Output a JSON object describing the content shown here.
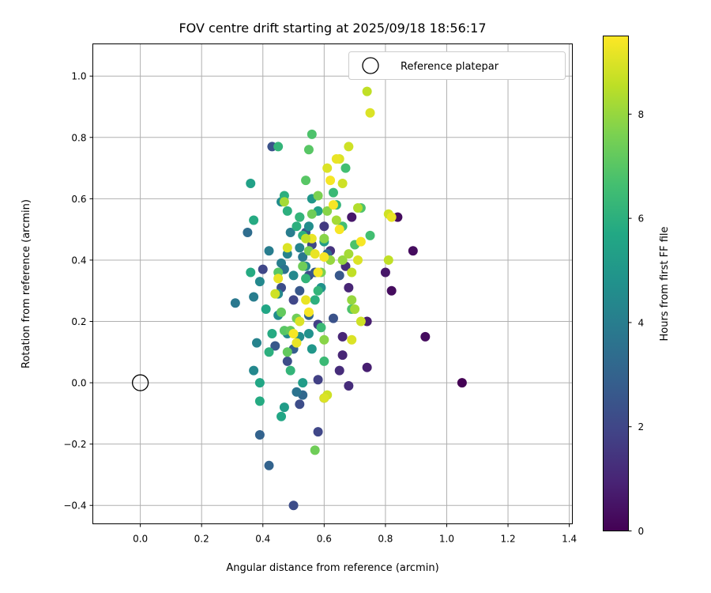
{
  "chart_data": {
    "type": "scatter",
    "title": "FOV centre drift starting at 2025/09/18 18:56:17",
    "xlabel": "Angular distance from reference (arcmin)",
    "ylabel": "Rotation from reference (arcmin)",
    "xlim": [
      -0.155,
      1.41
    ],
    "ylim": [
      -0.46,
      1.105
    ],
    "xticks": [
      0.0,
      0.2,
      0.4,
      0.6,
      0.8,
      1.0,
      1.2,
      1.4
    ],
    "yticks": [
      -0.4,
      -0.2,
      0.0,
      0.2,
      0.4,
      0.6,
      0.8,
      1.0
    ],
    "grid": true,
    "legend": {
      "label": "Reference platepar",
      "placement": "top-right"
    },
    "reference_point": {
      "x": 0.0,
      "y": 0.0
    },
    "colorbar": {
      "label": "Hours from first FF file",
      "range": [
        0,
        9.5
      ],
      "ticks": [
        0,
        2,
        4,
        6,
        8
      ],
      "colormap": "viridis"
    },
    "points": [
      [
        1.05,
        0.0,
        0.0
      ],
      [
        0.93,
        0.15,
        0.3
      ],
      [
        0.89,
        0.43,
        0.3
      ],
      [
        0.84,
        0.54,
        0.3
      ],
      [
        0.82,
        0.3,
        0.3
      ],
      [
        0.8,
        0.36,
        0.6
      ],
      [
        0.74,
        0.2,
        0.8
      ],
      [
        0.74,
        0.05,
        0.8
      ],
      [
        0.69,
        0.54,
        0.6
      ],
      [
        0.68,
        0.31,
        1.0
      ],
      [
        0.67,
        0.38,
        1.2
      ],
      [
        0.66,
        0.15,
        1.0
      ],
      [
        0.66,
        0.09,
        1.0
      ],
      [
        0.65,
        0.04,
        1.2
      ],
      [
        0.68,
        -0.01,
        1.2
      ],
      [
        0.62,
        0.43,
        1.4
      ],
      [
        0.6,
        0.51,
        1.6
      ],
      [
        0.6,
        -0.05,
        1.8
      ],
      [
        0.58,
        0.19,
        1.8
      ],
      [
        0.58,
        0.01,
        1.8
      ],
      [
        0.58,
        -0.16,
        2.0
      ],
      [
        0.56,
        0.45,
        2.0
      ],
      [
        0.55,
        0.35,
        2.2
      ],
      [
        0.5,
        0.27,
        2.0
      ],
      [
        0.48,
        0.07,
        2.2
      ],
      [
        0.46,
        0.31,
        2.2
      ],
      [
        0.43,
        0.77,
        2.4
      ],
      [
        0.4,
        0.37,
        2.0
      ],
      [
        0.39,
        -0.17,
        3.0
      ],
      [
        0.42,
        -0.27,
        3.0
      ],
      [
        0.5,
        -0.4,
        2.2
      ],
      [
        0.52,
        -0.07,
        2.2
      ],
      [
        0.52,
        0.3,
        2.6
      ],
      [
        0.44,
        0.12,
        2.6
      ],
      [
        0.54,
        0.49,
        2.6
      ],
      [
        0.57,
        0.36,
        2.6
      ],
      [
        0.63,
        0.21,
        2.4
      ],
      [
        0.65,
        0.35,
        2.6
      ],
      [
        0.5,
        0.11,
        2.8
      ],
      [
        0.55,
        0.22,
        3.0
      ],
      [
        0.61,
        0.42,
        3.2
      ],
      [
        0.53,
        -0.04,
        3.2
      ],
      [
        0.51,
        -0.03,
        3.6
      ],
      [
        0.35,
        0.49,
        3.4
      ],
      [
        0.31,
        0.26,
        3.8
      ],
      [
        0.38,
        0.13,
        4.2
      ],
      [
        0.37,
        0.04,
        4.4
      ],
      [
        0.37,
        0.28,
        4.0
      ],
      [
        0.39,
        0.33,
        4.4
      ],
      [
        0.42,
        0.43,
        4.0
      ],
      [
        0.46,
        0.39,
        4.0
      ],
      [
        0.47,
        0.37,
        3.6
      ],
      [
        0.48,
        0.42,
        4.2
      ],
      [
        0.49,
        0.49,
        4.0
      ],
      [
        0.5,
        0.35,
        4.4
      ],
      [
        0.52,
        0.44,
        4.2
      ],
      [
        0.53,
        0.41,
        3.8
      ],
      [
        0.54,
        0.38,
        4.4
      ],
      [
        0.55,
        0.51,
        4.6
      ],
      [
        0.55,
        0.16,
        4.8
      ],
      [
        0.52,
        0.15,
        4.6
      ],
      [
        0.48,
        0.16,
        4.4
      ],
      [
        0.45,
        0.22,
        4.6
      ],
      [
        0.45,
        0.29,
        4.4
      ],
      [
        0.46,
        0.59,
        4.6
      ],
      [
        0.52,
        0.54,
        5.0
      ],
      [
        0.56,
        0.6,
        5.0
      ],
      [
        0.58,
        0.56,
        5.4
      ],
      [
        0.6,
        0.46,
        5.2
      ],
      [
        0.59,
        0.31,
        4.8
      ],
      [
        0.56,
        0.11,
        5.0
      ],
      [
        0.53,
        0.0,
        5.2
      ],
      [
        0.47,
        -0.08,
        5.2
      ],
      [
        0.46,
        -0.11,
        5.6
      ],
      [
        0.39,
        0.0,
        5.6
      ],
      [
        0.39,
        -0.06,
        5.8
      ],
      [
        0.36,
        0.65,
        5.4
      ],
      [
        0.37,
        0.53,
        5.8
      ],
      [
        0.36,
        0.36,
        5.8
      ],
      [
        0.41,
        0.24,
        5.6
      ],
      [
        0.43,
        0.16,
        5.8
      ],
      [
        0.42,
        0.1,
        6.0
      ],
      [
        0.47,
        0.61,
        6.0
      ],
      [
        0.48,
        0.56,
        6.0
      ],
      [
        0.49,
        0.04,
        6.2
      ],
      [
        0.51,
        0.51,
        6.0
      ],
      [
        0.52,
        0.54,
        6.2
      ],
      [
        0.53,
        0.48,
        6.0
      ],
      [
        0.54,
        0.34,
        6.2
      ],
      [
        0.57,
        0.27,
        6.0
      ],
      [
        0.58,
        0.3,
        6.2
      ],
      [
        0.59,
        0.18,
        6.4
      ],
      [
        0.6,
        0.07,
        6.4
      ],
      [
        0.63,
        0.62,
        6.4
      ],
      [
        0.64,
        0.58,
        6.2
      ],
      [
        0.66,
        0.51,
        6.6
      ],
      [
        0.67,
        0.7,
        6.6
      ],
      [
        0.69,
        0.24,
        6.8
      ],
      [
        0.7,
        0.45,
        6.8
      ],
      [
        0.72,
        0.57,
        6.8
      ],
      [
        0.75,
        0.48,
        6.6
      ],
      [
        0.45,
        0.77,
        6.2
      ],
      [
        0.56,
        0.81,
        6.8
      ],
      [
        0.55,
        0.76,
        7.0
      ],
      [
        0.54,
        0.66,
        7.0
      ],
      [
        0.45,
        0.36,
        7.0
      ],
      [
        0.46,
        0.23,
        7.2
      ],
      [
        0.47,
        0.17,
        7.0
      ],
      [
        0.48,
        0.1,
        7.2
      ],
      [
        0.49,
        0.17,
        7.2
      ],
      [
        0.51,
        0.21,
        7.4
      ],
      [
        0.53,
        0.38,
        7.4
      ],
      [
        0.55,
        0.43,
        7.6
      ],
      [
        0.56,
        0.55,
        7.4
      ],
      [
        0.57,
        -0.22,
        7.4
      ],
      [
        0.58,
        0.61,
        7.6
      ],
      [
        0.59,
        0.36,
        7.6
      ],
      [
        0.6,
        0.14,
        7.8
      ],
      [
        0.6,
        0.47,
        7.8
      ],
      [
        0.61,
        0.56,
        7.8
      ],
      [
        0.62,
        0.4,
        8.0
      ],
      [
        0.64,
        0.53,
        8.2
      ],
      [
        0.66,
        0.4,
        8.0
      ],
      [
        0.68,
        0.42,
        8.2
      ],
      [
        0.69,
        0.27,
        8.0
      ],
      [
        0.7,
        0.24,
        8.2
      ],
      [
        0.71,
        0.57,
        8.4
      ],
      [
        0.74,
        0.95,
        8.6
      ],
      [
        0.75,
        0.88,
        9.0
      ],
      [
        0.81,
        0.4,
        8.6
      ],
      [
        0.81,
        0.55,
        8.8
      ],
      [
        0.82,
        0.54,
        9.2
      ],
      [
        0.68,
        0.77,
        8.8
      ],
      [
        0.65,
        0.73,
        9.0
      ],
      [
        0.64,
        0.73,
        9.2
      ],
      [
        0.62,
        0.66,
        9.4
      ],
      [
        0.61,
        0.7,
        9.0
      ],
      [
        0.63,
        0.58,
        9.4
      ],
      [
        0.65,
        0.5,
        9.4
      ],
      [
        0.66,
        0.65,
        8.8
      ],
      [
        0.6,
        0.41,
        9.4
      ],
      [
        0.57,
        0.42,
        9.2
      ],
      [
        0.55,
        0.23,
        9.4
      ],
      [
        0.54,
        0.27,
        9.2
      ],
      [
        0.52,
        0.2,
        9.0
      ],
      [
        0.51,
        0.13,
        9.2
      ],
      [
        0.5,
        0.16,
        9.4
      ],
      [
        0.48,
        0.44,
        9.0
      ],
      [
        0.45,
        0.34,
        9.2
      ],
      [
        0.44,
        0.29,
        8.8
      ],
      [
        0.47,
        0.59,
        8.2
      ],
      [
        0.69,
        0.36,
        8.6
      ],
      [
        0.69,
        0.14,
        9.0
      ],
      [
        0.72,
        0.2,
        8.8
      ],
      [
        0.72,
        0.46,
        9.4
      ],
      [
        0.71,
        0.4,
        9.0
      ],
      [
        0.61,
        -0.04,
        8.8
      ],
      [
        0.6,
        -0.05,
        9.0
      ],
      [
        0.58,
        0.36,
        9.4
      ],
      [
        0.56,
        0.47,
        9.2
      ],
      [
        0.54,
        0.47,
        8.6
      ]
    ]
  }
}
